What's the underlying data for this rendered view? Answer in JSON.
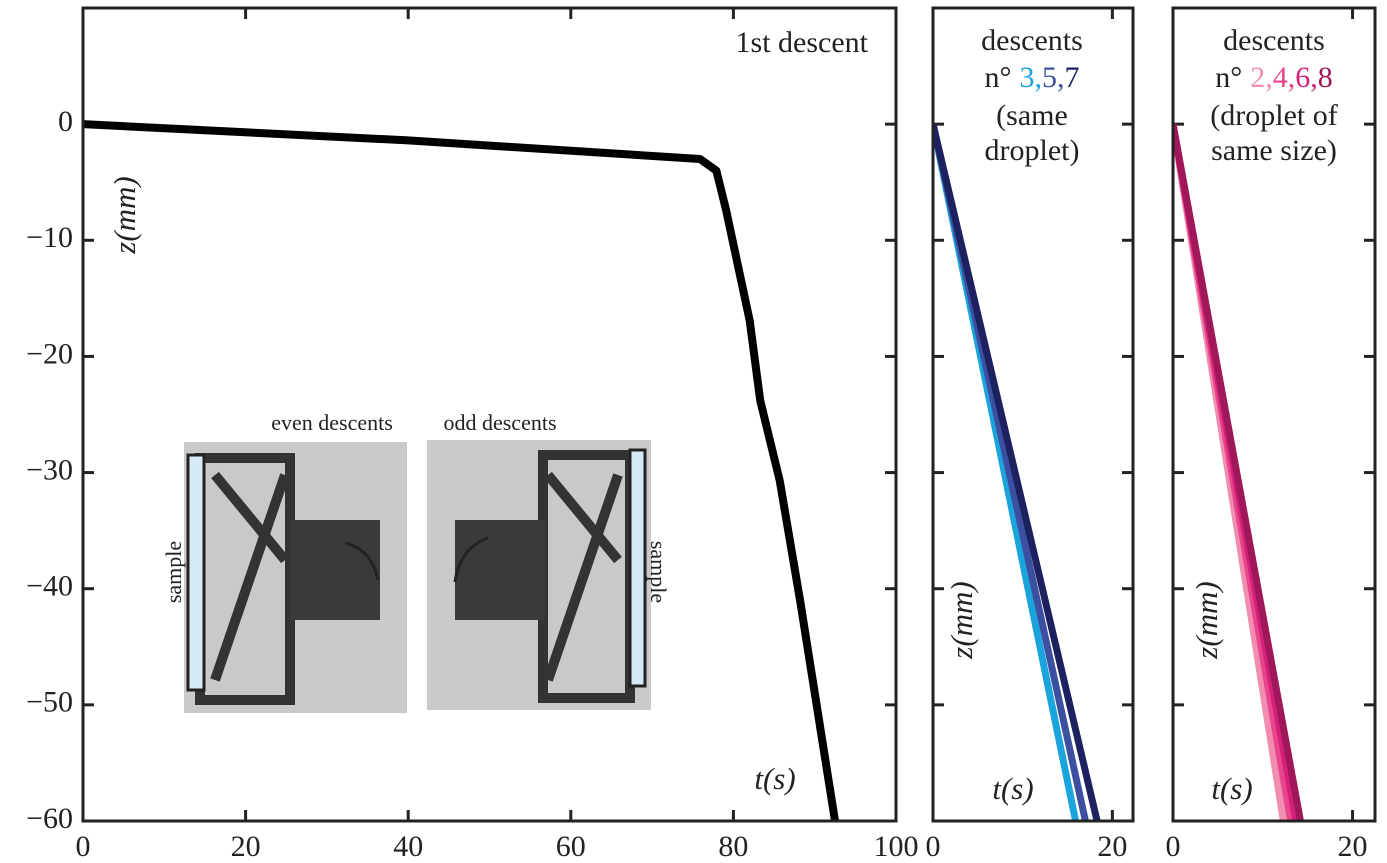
{
  "chart_data": [
    {
      "type": "line",
      "title": "1st descent",
      "xlabel": "t(s)",
      "ylabel": "z(mm)",
      "annotations": [
        "even descents",
        "odd descents",
        "sample",
        "sample"
      ],
      "xlim": [
        0,
        100
      ],
      "ylim": [
        -60,
        10
      ],
      "xticks": [
        0,
        20,
        40,
        60,
        80,
        100
      ],
      "yticks": [
        {
          "value": -60,
          "label": "−60"
        },
        {
          "value": -50,
          "label": "−50"
        },
        {
          "value": -40,
          "label": "−40"
        },
        {
          "value": -30,
          "label": "−30"
        },
        {
          "value": -20,
          "label": "−20"
        },
        {
          "value": -10,
          "label": "−10"
        },
        0
      ],
      "series": [
        {
          "color": "#000000",
          "x": [
            0,
            40,
            75.9,
            77.9,
            79.1,
            82,
            83.3,
            85.7,
            88.2,
            92.5
          ],
          "values": [
            0,
            -1.4,
            -3,
            -4,
            -7.4,
            -16.9,
            -23.8,
            -30.7,
            -41,
            -60
          ]
        }
      ]
    },
    {
      "type": "line",
      "title": [
        "descents",
        "n°"
      ],
      "name_separator": ",",
      "subtitle": [
        "(same",
        "droplet)"
      ],
      "xlabel": "t(s)",
      "ylabel": "z(mm)",
      "xlim": [
        0,
        22.3
      ],
      "ylim": [
        -60,
        10
      ],
      "xticks": [
        0,
        20
      ],
      "yticks": [
        -60,
        -50,
        -40,
        -30,
        -20,
        -10,
        0
      ],
      "series": [
        {
          "name": "3",
          "color": "#1ba3dc",
          "x": [
            0,
            15.9
          ],
          "values": [
            0,
            -60
          ]
        },
        {
          "name": "5",
          "color": "#3c4fa0",
          "x": [
            0,
            17
          ],
          "values": [
            0,
            -60
          ]
        },
        {
          "name": "7",
          "color": "#1d2160",
          "x": [
            0,
            18.3
          ],
          "values": [
            0,
            -60
          ]
        }
      ]
    },
    {
      "type": "line",
      "title": [
        "descents",
        "n°"
      ],
      "name_separator": ",",
      "subtitle": [
        "(droplet of",
        "same size)"
      ],
      "xlabel": "t(s)",
      "ylabel": "z(mm)",
      "xlim": [
        0,
        22.5
      ],
      "ylim": [
        -60,
        10
      ],
      "xticks": [
        0,
        20
      ],
      "yticks": [
        -60,
        -50,
        -40,
        -30,
        -20,
        -10,
        0
      ],
      "series": [
        {
          "name": "2",
          "color": "#f08db0",
          "x": [
            0,
            12.3
          ],
          "values": [
            0,
            -60
          ]
        },
        {
          "name": "4",
          "color": "#e8458b",
          "x": [
            0,
            13.1
          ],
          "values": [
            0,
            -60
          ]
        },
        {
          "name": "6",
          "color": "#d4207a",
          "x": [
            0,
            13.7
          ],
          "values": [
            0,
            -60
          ]
        },
        {
          "name": "8",
          "color": "#a0185a",
          "x": [
            0,
            14.2
          ],
          "values": [
            0,
            -60
          ]
        }
      ]
    }
  ]
}
